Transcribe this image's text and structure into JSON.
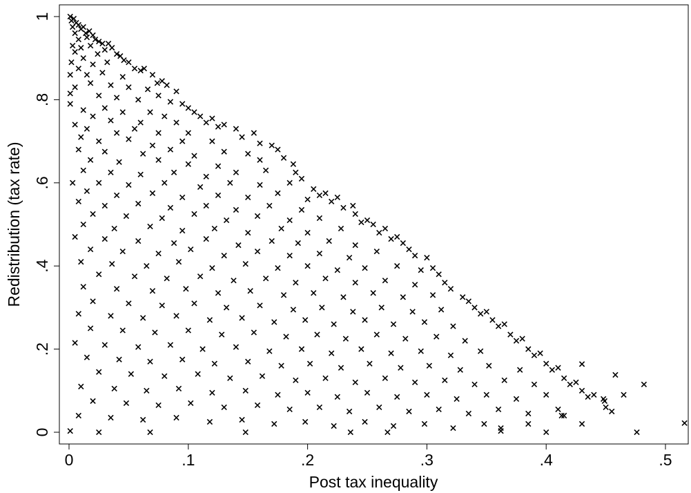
{
  "chart_data": {
    "type": "scatter",
    "title": "",
    "xlabel": "Post tax inequality",
    "ylabel": "Redistribution (tax rate)",
    "xlim": [
      0,
      0.52
    ],
    "ylim": [
      0,
      1
    ],
    "x_ticks": [
      {
        "value": 0,
        "label": "0"
      },
      {
        "value": 0.1,
        "label": ".1"
      },
      {
        "value": 0.2,
        "label": ".2"
      },
      {
        "value": 0.3,
        "label": ".3"
      },
      {
        "value": 0.4,
        "label": ".4"
      },
      {
        "value": 0.5,
        "label": ".5"
      }
    ],
    "y_ticks": [
      {
        "value": 0,
        "label": "0"
      },
      {
        "value": 0.2,
        "label": ".2"
      },
      {
        "value": 0.4,
        "label": ".4"
      },
      {
        "value": 0.6,
        "label": ".6"
      },
      {
        "value": 0.8,
        "label": ".8"
      },
      {
        "value": 1,
        "label": "1"
      }
    ],
    "marker": "x",
    "grid": false,
    "marker_color": "#000000",
    "points": [
      [
        0.001,
        1.0
      ],
      [
        0.002,
        0.99
      ],
      [
        0.004,
        0.995
      ],
      [
        0.006,
        0.985
      ],
      [
        0.003,
        0.975
      ],
      [
        0.008,
        0.98
      ],
      [
        0.01,
        0.97
      ],
      [
        0.012,
        0.975
      ],
      [
        0.005,
        0.96
      ],
      [
        0.014,
        0.96
      ],
      [
        0.017,
        0.965
      ],
      [
        0.02,
        0.955
      ],
      [
        0.008,
        0.945
      ],
      [
        0.015,
        0.95
      ],
      [
        0.022,
        0.945
      ],
      [
        0.025,
        0.94
      ],
      [
        0.028,
        0.935
      ],
      [
        0.003,
        0.93
      ],
      [
        0.01,
        0.925
      ],
      [
        0.018,
        0.93
      ],
      [
        0.03,
        0.92
      ],
      [
        0.033,
        0.935
      ],
      [
        0.036,
        0.925
      ],
      [
        0.005,
        0.915
      ],
      [
        0.012,
        0.9
      ],
      [
        0.024,
        0.91
      ],
      [
        0.04,
        0.91
      ],
      [
        0.043,
        0.905
      ],
      [
        0.046,
        0.895
      ],
      [
        0.002,
        0.89
      ],
      [
        0.008,
        0.875
      ],
      [
        0.02,
        0.885
      ],
      [
        0.032,
        0.89
      ],
      [
        0.05,
        0.89
      ],
      [
        0.055,
        0.875
      ],
      [
        0.06,
        0.87
      ],
      [
        0.001,
        0.86
      ],
      [
        0.015,
        0.86
      ],
      [
        0.028,
        0.865
      ],
      [
        0.045,
        0.855
      ],
      [
        0.063,
        0.875
      ],
      [
        0.07,
        0.86
      ],
      [
        0.074,
        0.84
      ],
      [
        0.078,
        0.845
      ],
      [
        0.082,
        0.835
      ],
      [
        0.005,
        0.83
      ],
      [
        0.018,
        0.84
      ],
      [
        0.035,
        0.835
      ],
      [
        0.05,
        0.83
      ],
      [
        0.066,
        0.825
      ],
      [
        0.09,
        0.82
      ],
      [
        0.001,
        0.815
      ],
      [
        0.025,
        0.81
      ],
      [
        0.04,
        0.805
      ],
      [
        0.058,
        0.8
      ],
      [
        0.075,
        0.81
      ],
      [
        0.085,
        0.795
      ],
      [
        0.095,
        0.79
      ],
      [
        0.1,
        0.78
      ],
      [
        0.001,
        0.79
      ],
      [
        0.012,
        0.775
      ],
      [
        0.03,
        0.78
      ],
      [
        0.045,
        0.77
      ],
      [
        0.068,
        0.77
      ],
      [
        0.08,
        0.76
      ],
      [
        0.105,
        0.77
      ],
      [
        0.11,
        0.76
      ],
      [
        0.115,
        0.745
      ],
      [
        0.02,
        0.76
      ],
      [
        0.035,
        0.75
      ],
      [
        0.06,
        0.745
      ],
      [
        0.09,
        0.745
      ],
      [
        0.12,
        0.755
      ],
      [
        0.125,
        0.735
      ],
      [
        0.005,
        0.74
      ],
      [
        0.015,
        0.73
      ],
      [
        0.04,
        0.72
      ],
      [
        0.055,
        0.73
      ],
      [
        0.075,
        0.72
      ],
      [
        0.1,
        0.72
      ],
      [
        0.13,
        0.74
      ],
      [
        0.14,
        0.73
      ],
      [
        0.01,
        0.71
      ],
      [
        0.025,
        0.7
      ],
      [
        0.05,
        0.705
      ],
      [
        0.07,
        0.69
      ],
      [
        0.095,
        0.7
      ],
      [
        0.12,
        0.7
      ],
      [
        0.145,
        0.71
      ],
      [
        0.155,
        0.72
      ],
      [
        0.16,
        0.695
      ],
      [
        0.008,
        0.68
      ],
      [
        0.03,
        0.675
      ],
      [
        0.062,
        0.67
      ],
      [
        0.085,
        0.68
      ],
      [
        0.105,
        0.665
      ],
      [
        0.13,
        0.675
      ],
      [
        0.15,
        0.67
      ],
      [
        0.17,
        0.69
      ],
      [
        0.175,
        0.68
      ],
      [
        0.018,
        0.655
      ],
      [
        0.042,
        0.65
      ],
      [
        0.075,
        0.655
      ],
      [
        0.1,
        0.645
      ],
      [
        0.125,
        0.64
      ],
      [
        0.16,
        0.655
      ],
      [
        0.18,
        0.66
      ],
      [
        0.188,
        0.645
      ],
      [
        0.012,
        0.63
      ],
      [
        0.035,
        0.625
      ],
      [
        0.06,
        0.62
      ],
      [
        0.088,
        0.625
      ],
      [
        0.115,
        0.615
      ],
      [
        0.14,
        0.625
      ],
      [
        0.165,
        0.63
      ],
      [
        0.19,
        0.625
      ],
      [
        0.195,
        0.61
      ],
      [
        0.003,
        0.6
      ],
      [
        0.025,
        0.6
      ],
      [
        0.05,
        0.595
      ],
      [
        0.08,
        0.6
      ],
      [
        0.11,
        0.59
      ],
      [
        0.135,
        0.6
      ],
      [
        0.16,
        0.595
      ],
      [
        0.185,
        0.6
      ],
      [
        0.205,
        0.585
      ],
      [
        0.21,
        0.57
      ],
      [
        0.215,
        0.575
      ],
      [
        0.015,
        0.58
      ],
      [
        0.04,
        0.57
      ],
      [
        0.07,
        0.575
      ],
      [
        0.095,
        0.565
      ],
      [
        0.125,
        0.57
      ],
      [
        0.15,
        0.565
      ],
      [
        0.175,
        0.575
      ],
      [
        0.2,
        0.56
      ],
      [
        0.22,
        0.555
      ],
      [
        0.225,
        0.565
      ],
      [
        0.008,
        0.555
      ],
      [
        0.03,
        0.545
      ],
      [
        0.058,
        0.55
      ],
      [
        0.085,
        0.54
      ],
      [
        0.115,
        0.545
      ],
      [
        0.14,
        0.535
      ],
      [
        0.168,
        0.545
      ],
      [
        0.195,
        0.535
      ],
      [
        0.23,
        0.54
      ],
      [
        0.238,
        0.545
      ],
      [
        0.02,
        0.525
      ],
      [
        0.048,
        0.52
      ],
      [
        0.078,
        0.515
      ],
      [
        0.105,
        0.525
      ],
      [
        0.132,
        0.51
      ],
      [
        0.158,
        0.52
      ],
      [
        0.185,
        0.51
      ],
      [
        0.21,
        0.515
      ],
      [
        0.24,
        0.525
      ],
      [
        0.245,
        0.505
      ],
      [
        0.25,
        0.51
      ],
      [
        0.012,
        0.5
      ],
      [
        0.038,
        0.49
      ],
      [
        0.068,
        0.495
      ],
      [
        0.095,
        0.485
      ],
      [
        0.122,
        0.49
      ],
      [
        0.15,
        0.48
      ],
      [
        0.178,
        0.49
      ],
      [
        0.2,
        0.48
      ],
      [
        0.228,
        0.49
      ],
      [
        0.255,
        0.5
      ],
      [
        0.26,
        0.48
      ],
      [
        0.265,
        0.49
      ],
      [
        0.005,
        0.47
      ],
      [
        0.03,
        0.465
      ],
      [
        0.058,
        0.46
      ],
      [
        0.088,
        0.455
      ],
      [
        0.115,
        0.465
      ],
      [
        0.142,
        0.45
      ],
      [
        0.17,
        0.46
      ],
      [
        0.192,
        0.455
      ],
      [
        0.218,
        0.46
      ],
      [
        0.24,
        0.45
      ],
      [
        0.27,
        0.465
      ],
      [
        0.275,
        0.47
      ],
      [
        0.28,
        0.455
      ],
      [
        0.018,
        0.44
      ],
      [
        0.045,
        0.435
      ],
      [
        0.075,
        0.43
      ],
      [
        0.102,
        0.44
      ],
      [
        0.13,
        0.425
      ],
      [
        0.158,
        0.435
      ],
      [
        0.185,
        0.425
      ],
      [
        0.21,
        0.43
      ],
      [
        0.235,
        0.42
      ],
      [
        0.258,
        0.435
      ],
      [
        0.285,
        0.44
      ],
      [
        0.29,
        0.425
      ],
      [
        0.3,
        0.42
      ],
      [
        0.01,
        0.41
      ],
      [
        0.036,
        0.405
      ],
      [
        0.065,
        0.4
      ],
      [
        0.092,
        0.41
      ],
      [
        0.12,
        0.395
      ],
      [
        0.148,
        0.405
      ],
      [
        0.175,
        0.395
      ],
      [
        0.2,
        0.4
      ],
      [
        0.225,
        0.39
      ],
      [
        0.248,
        0.395
      ],
      [
        0.275,
        0.4
      ],
      [
        0.295,
        0.39
      ],
      [
        0.305,
        0.395
      ],
      [
        0.31,
        0.38
      ],
      [
        0.025,
        0.38
      ],
      [
        0.055,
        0.375
      ],
      [
        0.082,
        0.37
      ],
      [
        0.11,
        0.375
      ],
      [
        0.138,
        0.365
      ],
      [
        0.165,
        0.37
      ],
      [
        0.19,
        0.36
      ],
      [
        0.215,
        0.37
      ],
      [
        0.24,
        0.36
      ],
      [
        0.265,
        0.365
      ],
      [
        0.29,
        0.355
      ],
      [
        0.315,
        0.36
      ],
      [
        0.32,
        0.345
      ],
      [
        0.012,
        0.35
      ],
      [
        0.04,
        0.345
      ],
      [
        0.07,
        0.34
      ],
      [
        0.098,
        0.345
      ],
      [
        0.125,
        0.335
      ],
      [
        0.152,
        0.34
      ],
      [
        0.18,
        0.33
      ],
      [
        0.205,
        0.335
      ],
      [
        0.23,
        0.325
      ],
      [
        0.255,
        0.335
      ],
      [
        0.28,
        0.325
      ],
      [
        0.305,
        0.33
      ],
      [
        0.33,
        0.325
      ],
      [
        0.335,
        0.315
      ],
      [
        0.02,
        0.315
      ],
      [
        0.05,
        0.31
      ],
      [
        0.078,
        0.305
      ],
      [
        0.105,
        0.31
      ],
      [
        0.132,
        0.3
      ],
      [
        0.16,
        0.305
      ],
      [
        0.188,
        0.295
      ],
      [
        0.212,
        0.3
      ],
      [
        0.238,
        0.29
      ],
      [
        0.262,
        0.3
      ],
      [
        0.288,
        0.29
      ],
      [
        0.312,
        0.295
      ],
      [
        0.34,
        0.3
      ],
      [
        0.345,
        0.285
      ],
      [
        0.35,
        0.29
      ],
      [
        0.008,
        0.285
      ],
      [
        0.035,
        0.28
      ],
      [
        0.062,
        0.275
      ],
      [
        0.09,
        0.28
      ],
      [
        0.118,
        0.27
      ],
      [
        0.145,
        0.275
      ],
      [
        0.172,
        0.265
      ],
      [
        0.198,
        0.27
      ],
      [
        0.222,
        0.26
      ],
      [
        0.248,
        0.27
      ],
      [
        0.272,
        0.26
      ],
      [
        0.298,
        0.265
      ],
      [
        0.322,
        0.255
      ],
      [
        0.355,
        0.27
      ],
      [
        0.36,
        0.255
      ],
      [
        0.365,
        0.26
      ],
      [
        0.018,
        0.25
      ],
      [
        0.045,
        0.245
      ],
      [
        0.072,
        0.24
      ],
      [
        0.1,
        0.245
      ],
      [
        0.128,
        0.235
      ],
      [
        0.155,
        0.24
      ],
      [
        0.182,
        0.23
      ],
      [
        0.208,
        0.235
      ],
      [
        0.232,
        0.225
      ],
      [
        0.258,
        0.235
      ],
      [
        0.282,
        0.225
      ],
      [
        0.308,
        0.23
      ],
      [
        0.332,
        0.22
      ],
      [
        0.37,
        0.235
      ],
      [
        0.375,
        0.22
      ],
      [
        0.38,
        0.225
      ],
      [
        0.005,
        0.215
      ],
      [
        0.03,
        0.21
      ],
      [
        0.058,
        0.205
      ],
      [
        0.085,
        0.21
      ],
      [
        0.112,
        0.2
      ],
      [
        0.14,
        0.205
      ],
      [
        0.168,
        0.195
      ],
      [
        0.195,
        0.2
      ],
      [
        0.22,
        0.19
      ],
      [
        0.245,
        0.2
      ],
      [
        0.27,
        0.19
      ],
      [
        0.295,
        0.195
      ],
      [
        0.32,
        0.185
      ],
      [
        0.345,
        0.195
      ],
      [
        0.385,
        0.2
      ],
      [
        0.39,
        0.185
      ],
      [
        0.395,
        0.19
      ],
      [
        0.015,
        0.18
      ],
      [
        0.042,
        0.175
      ],
      [
        0.068,
        0.17
      ],
      [
        0.095,
        0.175
      ],
      [
        0.122,
        0.165
      ],
      [
        0.15,
        0.17
      ],
      [
        0.178,
        0.16
      ],
      [
        0.202,
        0.165
      ],
      [
        0.228,
        0.155
      ],
      [
        0.252,
        0.165
      ],
      [
        0.278,
        0.155
      ],
      [
        0.302,
        0.16
      ],
      [
        0.328,
        0.15
      ],
      [
        0.352,
        0.16
      ],
      [
        0.378,
        0.15
      ],
      [
        0.4,
        0.165
      ],
      [
        0.405,
        0.15
      ],
      [
        0.41,
        0.155
      ],
      [
        0.025,
        0.145
      ],
      [
        0.052,
        0.14
      ],
      [
        0.08,
        0.135
      ],
      [
        0.108,
        0.14
      ],
      [
        0.135,
        0.13
      ],
      [
        0.162,
        0.135
      ],
      [
        0.19,
        0.125
      ],
      [
        0.215,
        0.13
      ],
      [
        0.24,
        0.12
      ],
      [
        0.265,
        0.13
      ],
      [
        0.29,
        0.12
      ],
      [
        0.315,
        0.125
      ],
      [
        0.34,
        0.115
      ],
      [
        0.365,
        0.125
      ],
      [
        0.39,
        0.115
      ],
      [
        0.415,
        0.13
      ],
      [
        0.42,
        0.115
      ],
      [
        0.425,
        0.12
      ],
      [
        0.01,
        0.11
      ],
      [
        0.038,
        0.105
      ],
      [
        0.065,
        0.1
      ],
      [
        0.092,
        0.105
      ],
      [
        0.12,
        0.095
      ],
      [
        0.148,
        0.1
      ],
      [
        0.175,
        0.09
      ],
      [
        0.2,
        0.095
      ],
      [
        0.225,
        0.085
      ],
      [
        0.25,
        0.095
      ],
      [
        0.275,
        0.085
      ],
      [
        0.3,
        0.09
      ],
      [
        0.325,
        0.08
      ],
      [
        0.35,
        0.09
      ],
      [
        0.375,
        0.08
      ],
      [
        0.4,
        0.09
      ],
      [
        0.43,
        0.1
      ],
      [
        0.435,
        0.085
      ],
      [
        0.44,
        0.09
      ],
      [
        0.448,
        0.08
      ],
      [
        0.02,
        0.075
      ],
      [
        0.048,
        0.07
      ],
      [
        0.075,
        0.065
      ],
      [
        0.102,
        0.07
      ],
      [
        0.13,
        0.06
      ],
      [
        0.158,
        0.065
      ],
      [
        0.185,
        0.055
      ],
      [
        0.21,
        0.06
      ],
      [
        0.235,
        0.05
      ],
      [
        0.26,
        0.06
      ],
      [
        0.285,
        0.05
      ],
      [
        0.31,
        0.055
      ],
      [
        0.335,
        0.045
      ],
      [
        0.36,
        0.055
      ],
      [
        0.385,
        0.045
      ],
      [
        0.41,
        0.055
      ],
      [
        0.45,
        0.06
      ],
      [
        0.455,
        0.05
      ],
      [
        0.465,
        0.09
      ],
      [
        0.482,
        0.115
      ],
      [
        0.008,
        0.04
      ],
      [
        0.035,
        0.035
      ],
      [
        0.062,
        0.03
      ],
      [
        0.09,
        0.035
      ],
      [
        0.118,
        0.025
      ],
      [
        0.145,
        0.03
      ],
      [
        0.172,
        0.02
      ],
      [
        0.198,
        0.025
      ],
      [
        0.222,
        0.015
      ],
      [
        0.248,
        0.025
      ],
      [
        0.272,
        0.015
      ],
      [
        0.298,
        0.02
      ],
      [
        0.322,
        0.01
      ],
      [
        0.348,
        0.02
      ],
      [
        0.362,
        0.01
      ],
      [
        0.385,
        0.02
      ],
      [
        0.415,
        0.04
      ],
      [
        0.43,
        0.02
      ],
      [
        0.001,
        0.003
      ],
      [
        0.025,
        0.0
      ],
      [
        0.068,
        0.0
      ],
      [
        0.148,
        0.0
      ],
      [
        0.236,
        0.0
      ],
      [
        0.267,
        0.0
      ],
      [
        0.362,
        0.003
      ],
      [
        0.4,
        0.0
      ],
      [
        0.476,
        0.0
      ],
      [
        0.516,
        0.022
      ],
      [
        0.413,
        0.04
      ],
      [
        0.458,
        0.138
      ],
      [
        0.449,
        0.075
      ],
      [
        0.43,
        0.164
      ]
    ]
  }
}
